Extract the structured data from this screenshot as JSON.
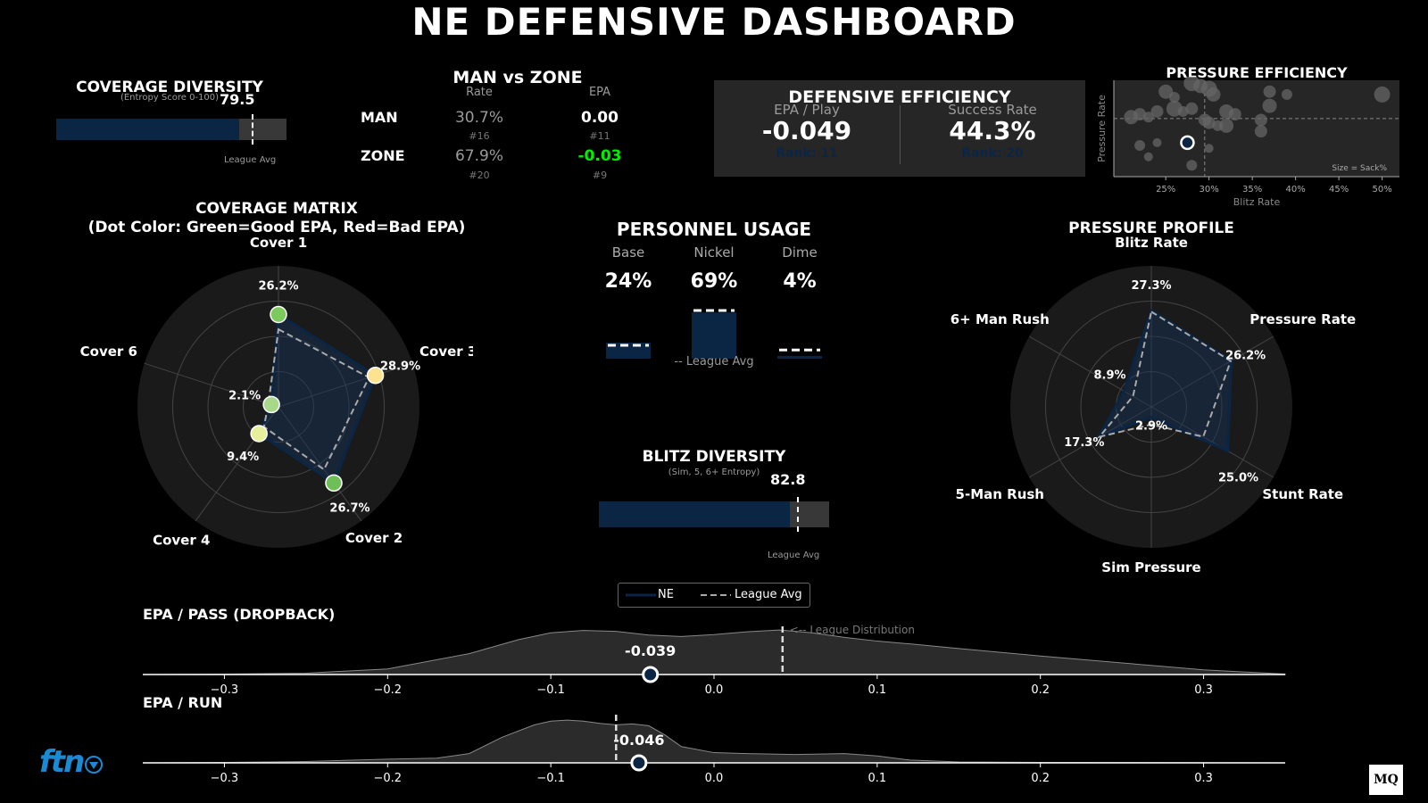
{
  "title": "NE DEFENSIVE DASHBOARD",
  "colors": {
    "ne": "#0b2545",
    "league": "#aaaaaa",
    "good": "#00ee00",
    "panel": "#262626"
  },
  "coverage_diversity": {
    "title": "COVERAGE DIVERSITY",
    "subtitle": "(Entropy Score 0-100)",
    "value": "79.5",
    "score": 79.5,
    "league_avg": 85,
    "league_label": "League Avg"
  },
  "man_zone": {
    "title": "MAN vs ZONE",
    "rate_header": "Rate",
    "epa_header": "EPA",
    "rows": [
      {
        "label": "MAN",
        "rate": "30.7%",
        "rate_rank": "#16",
        "epa": "0.00",
        "epa_rank": "#11"
      },
      {
        "label": "ZONE",
        "rate": "67.9%",
        "rate_rank": "#20",
        "epa": "-0.03",
        "epa_rank": "#9"
      }
    ]
  },
  "defensive_efficiency": {
    "title": "DEFENSIVE EFFICIENCY",
    "epa_label": "EPA / Play",
    "epa_value": "-0.049",
    "epa_rank": "Rank: 11",
    "sr_label": "Success Rate",
    "sr_value": "44.3%",
    "sr_rank": "Rank: 20"
  },
  "pressure_efficiency": {
    "title": "PRESSURE EFFICIENCY",
    "xlabel": "Blitz Rate",
    "ylabel": "Pressure Rate",
    "note": "Size = Sack%",
    "ticks": [
      "25%",
      "30%",
      "35%",
      "40%",
      "45%",
      "50%"
    ]
  },
  "coverage_matrix": {
    "title": "COVERAGE MATRIX",
    "subtitle": "(Dot Color: Green=Good EPA, Red=Bad EPA)"
  },
  "personnel": {
    "title": "PERSONNEL USAGE",
    "league_note": "-- League Avg"
  },
  "blitz_diversity": {
    "title": "BLITZ DIVERSITY",
    "subtitle": "(Sim, 5, 6+ Entropy)",
    "value": "82.8",
    "score": 82.8,
    "league_avg": 86,
    "league_label": "League Avg"
  },
  "pressure_profile": {
    "title": "PRESSURE PROFILE"
  },
  "legend": {
    "ne": "NE",
    "league": "League Avg"
  },
  "epa_pass": {
    "title": "EPA / PASS (DROPBACK)",
    "value": "-0.039",
    "team": -0.039,
    "league": 0.042,
    "dist_label": "<-- League Distribution"
  },
  "epa_run": {
    "title": "EPA / RUN",
    "value": "-0.046",
    "team": -0.046,
    "league": -0.06
  },
  "logos": {
    "left": "ftn",
    "right": "MQ"
  },
  "chart_data": [
    {
      "type": "radar",
      "id": "coverage",
      "categories": [
        "Cover 1",
        "Cover 3",
        "Cover 2",
        "Cover 4",
        "Cover 6"
      ],
      "values": [
        26.2,
        28.9,
        26.7,
        9.4,
        2.1
      ],
      "labels": [
        "26.2%",
        "28.9%",
        "26.7%",
        "9.4%",
        "2.1%"
      ],
      "league": [
        22,
        27,
        22,
        7,
        3
      ],
      "dot_colors": [
        "#7cc95c",
        "#fde38f",
        "#6fbf59",
        "#e6f09a",
        "#a8d98a"
      ],
      "rmax": 40
    },
    {
      "type": "bar",
      "id": "personnel",
      "categories": [
        "Base",
        "Nickel",
        "Dime"
      ],
      "values": [
        24,
        69,
        4
      ],
      "labels": [
        "24%",
        "69%",
        "4%"
      ],
      "league": [
        20,
        72,
        13
      ]
    },
    {
      "type": "radar",
      "id": "pressure",
      "categories": [
        "Blitz Rate",
        "Pressure Rate",
        "Stunt Rate",
        "Sim Pressure",
        "5-Man Rush",
        "6+ Man Rush"
      ],
      "values": [
        27.3,
        26.2,
        25.0,
        2.9,
        17.3,
        8.9
      ],
      "labels": [
        "27.3%",
        "26.2%",
        "25.0%",
        "2.9%",
        "17.3%",
        "8.9%"
      ],
      "league": [
        27,
        26,
        17,
        5,
        17,
        6
      ],
      "rmax": 40
    },
    {
      "type": "scatter",
      "id": "pressure_eff",
      "xlabel": "Blitz Rate",
      "ylabel": "Pressure Rate",
      "xlim": [
        19,
        52
      ],
      "ylim": [
        14,
        48
      ],
      "x_avg": 29.5,
      "y_avg": 34.5,
      "team": {
        "x": 27.5,
        "y": 26,
        "s": 5
      },
      "points": [
        {
          "x": 21,
          "y": 35,
          "s": 8
        },
        {
          "x": 22,
          "y": 36,
          "s": 7
        },
        {
          "x": 23,
          "y": 35,
          "s": 6
        },
        {
          "x": 24,
          "y": 37,
          "s": 7
        },
        {
          "x": 25,
          "y": 44,
          "s": 8
        },
        {
          "x": 26,
          "y": 42,
          "s": 6
        },
        {
          "x": 26,
          "y": 38,
          "s": 9
        },
        {
          "x": 27,
          "y": 37,
          "s": 6
        },
        {
          "x": 28,
          "y": 47,
          "s": 9
        },
        {
          "x": 29,
          "y": 46,
          "s": 8
        },
        {
          "x": 30,
          "y": 45,
          "s": 9
        },
        {
          "x": 30.5,
          "y": 43,
          "s": 8
        },
        {
          "x": 29.5,
          "y": 34,
          "s": 7
        },
        {
          "x": 30,
          "y": 33,
          "s": 7
        },
        {
          "x": 31,
          "y": 32,
          "s": 6
        },
        {
          "x": 32,
          "y": 37,
          "s": 8
        },
        {
          "x": 33,
          "y": 36,
          "s": 7
        },
        {
          "x": 32,
          "y": 32,
          "s": 8
        },
        {
          "x": 28,
          "y": 38,
          "s": 7
        },
        {
          "x": 37,
          "y": 44,
          "s": 7
        },
        {
          "x": 37,
          "y": 39,
          "s": 8
        },
        {
          "x": 39,
          "y": 43,
          "s": 6
        },
        {
          "x": 36,
          "y": 34,
          "s": 7
        },
        {
          "x": 36,
          "y": 30,
          "s": 7
        },
        {
          "x": 22,
          "y": 25,
          "s": 6
        },
        {
          "x": 24,
          "y": 26,
          "s": 5
        },
        {
          "x": 23,
          "y": 21,
          "s": 5
        },
        {
          "x": 28,
          "y": 18,
          "s": 6
        },
        {
          "x": 30,
          "y": 24,
          "s": 5
        },
        {
          "x": 50,
          "y": 43,
          "s": 9
        }
      ]
    },
    {
      "type": "density",
      "id": "epa_pass",
      "xlim": [
        -0.35,
        0.35
      ],
      "ticks": [
        -0.3,
        -0.2,
        -0.1,
        0.0,
        0.1,
        0.2,
        0.3
      ],
      "tick_labels": [
        "−0.3",
        "−0.2",
        "−0.1",
        "0.0",
        "0.1",
        "0.2",
        "0.3"
      ],
      "x": [
        -0.35,
        -0.3,
        -0.25,
        -0.2,
        -0.15,
        -0.12,
        -0.1,
        -0.08,
        -0.06,
        -0.04,
        -0.02,
        0,
        0.02,
        0.04,
        0.06,
        0.08,
        0.1,
        0.12,
        0.15,
        0.2,
        0.25,
        0.3,
        0.35
      ],
      "y": [
        0,
        0.01,
        0.03,
        0.12,
        0.45,
        0.75,
        0.9,
        0.95,
        0.93,
        0.85,
        0.82,
        0.86,
        0.92,
        0.96,
        0.9,
        0.8,
        0.72,
        0.66,
        0.56,
        0.4,
        0.25,
        0.1,
        0.01
      ]
    },
    {
      "type": "density",
      "id": "epa_run",
      "xlim": [
        -0.35,
        0.35
      ],
      "ticks": [
        -0.3,
        -0.2,
        -0.1,
        0.0,
        0.1,
        0.2,
        0.3
      ],
      "tick_labels": [
        "−0.3",
        "−0.2",
        "−0.1",
        "0.0",
        "0.1",
        "0.2",
        "0.3"
      ],
      "x": [
        -0.35,
        -0.3,
        -0.25,
        -0.2,
        -0.17,
        -0.15,
        -0.13,
        -0.11,
        -0.1,
        -0.09,
        -0.08,
        -0.07,
        -0.06,
        -0.05,
        -0.04,
        -0.03,
        -0.02,
        0,
        0.02,
        0.05,
        0.08,
        0.1,
        0.12,
        0.15,
        0.2,
        0.35
      ],
      "y": [
        0,
        0.01,
        0.03,
        0.08,
        0.1,
        0.2,
        0.55,
        0.82,
        0.9,
        0.92,
        0.9,
        0.85,
        0.82,
        0.84,
        0.8,
        0.6,
        0.35,
        0.22,
        0.2,
        0.18,
        0.2,
        0.15,
        0.06,
        0.02,
        0.01,
        0
      ]
    }
  ]
}
